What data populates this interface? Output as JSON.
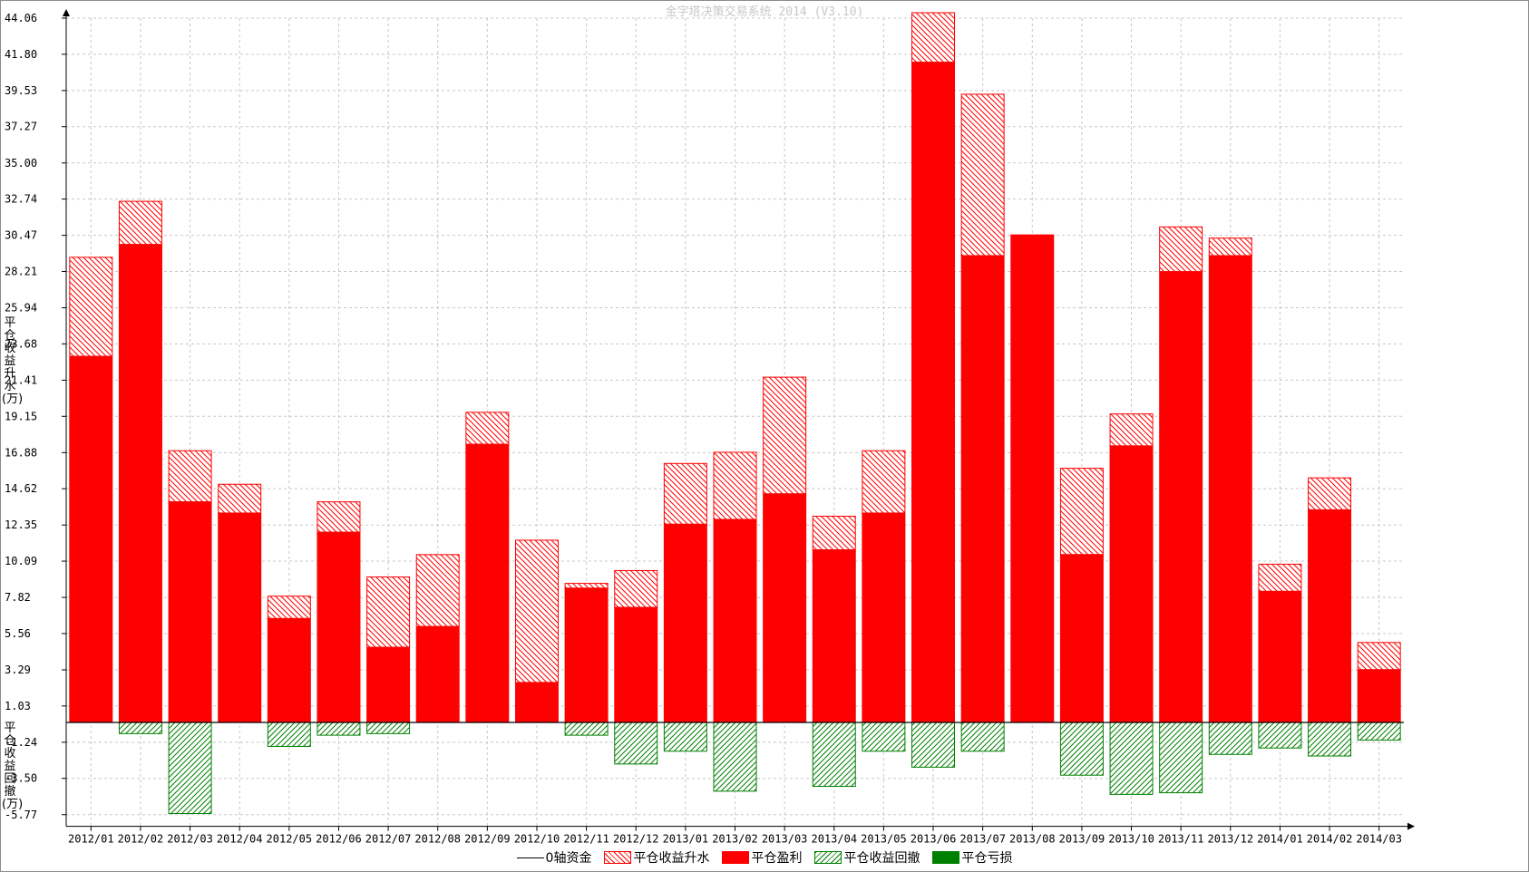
{
  "title": "金字塔决策交易系统 2014 (V3.10)",
  "ylabel_top": "平仓收益升水(万)",
  "ylabel_bottom": "平仓收益回撤(万)",
  "legend": [
    {
      "label": "0轴资金",
      "kind": "line",
      "color": "#000000"
    },
    {
      "label": "平仓收益升水",
      "kind": "hatch-up",
      "color": "#ff0000"
    },
    {
      "label": "平仓盈利",
      "kind": "solid",
      "color": "#ff0000"
    },
    {
      "label": "平仓收益回撤",
      "kind": "hatch-down",
      "color": "#008000"
    },
    {
      "label": "平仓亏损",
      "kind": "solid",
      "color": "#008000"
    }
  ],
  "chart_data": {
    "type": "bar",
    "title": "金字塔决策交易系统 2014 (V3.10)",
    "xlabel": "",
    "ylabel": "",
    "ylim": [
      -6.5,
      44.06
    ],
    "y_ticks": [
      "44.06",
      "41.80",
      "39.53",
      "37.27",
      "35.00",
      "32.74",
      "30.47",
      "28.21",
      "25.94",
      "23.68",
      "21.41",
      "19.15",
      "16.88",
      "14.62",
      "12.35",
      "10.09",
      "7.82",
      "5.56",
      "3.29",
      "1.03",
      "-1.24",
      "-3.50",
      "-5.77"
    ],
    "grid": true,
    "legend_position": "bottom",
    "categories": [
      "2012/01",
      "2012/02",
      "2012/03",
      "2012/04",
      "2012/05",
      "2012/06",
      "2012/07",
      "2012/08",
      "2012/09",
      "2012/10",
      "2012/11",
      "2012/12",
      "2013/01",
      "2013/02",
      "2013/03",
      "2013/04",
      "2013/05",
      "2013/06",
      "2013/07",
      "2013/08",
      "2013/09",
      "2013/10",
      "2013/11",
      "2013/12",
      "2014/01",
      "2014/02",
      "2014/03"
    ],
    "series": [
      {
        "name": "平仓盈利",
        "values": [
          22.9,
          29.9,
          13.8,
          13.1,
          6.5,
          11.9,
          4.7,
          6.0,
          17.4,
          2.5,
          8.4,
          7.2,
          12.4,
          12.7,
          14.3,
          10.8,
          13.1,
          41.3,
          29.2,
          30.5,
          10.5,
          17.3,
          28.2,
          29.2,
          8.2,
          13.3,
          3.3
        ]
      },
      {
        "name": "平仓收益升水",
        "values": [
          29.1,
          32.6,
          17.0,
          14.9,
          7.9,
          13.8,
          9.1,
          10.5,
          19.4,
          11.4,
          8.7,
          9.5,
          16.2,
          16.9,
          21.6,
          12.9,
          17.0,
          44.4,
          39.3,
          30.5,
          15.9,
          19.3,
          31.0,
          30.3,
          9.9,
          15.3,
          5.0
        ]
      },
      {
        "name": "平仓收益回撤",
        "values": [
          0,
          -0.7,
          -5.7,
          0,
          -1.5,
          -0.8,
          -0.7,
          0,
          0,
          0,
          -0.8,
          -2.6,
          -1.8,
          -4.3,
          0,
          -4.0,
          -1.8,
          -2.8,
          -1.8,
          0,
          -3.3,
          -4.5,
          -4.4,
          -2.0,
          -1.6,
          -2.1,
          -1.1
        ]
      },
      {
        "name": "平仓亏损",
        "values": [
          0,
          0,
          0,
          0,
          0,
          0,
          0,
          0,
          0,
          0,
          0,
          0,
          0,
          0,
          0,
          0,
          0,
          0,
          0,
          0,
          0,
          0,
          0,
          0,
          0,
          0,
          0
        ]
      }
    ]
  }
}
